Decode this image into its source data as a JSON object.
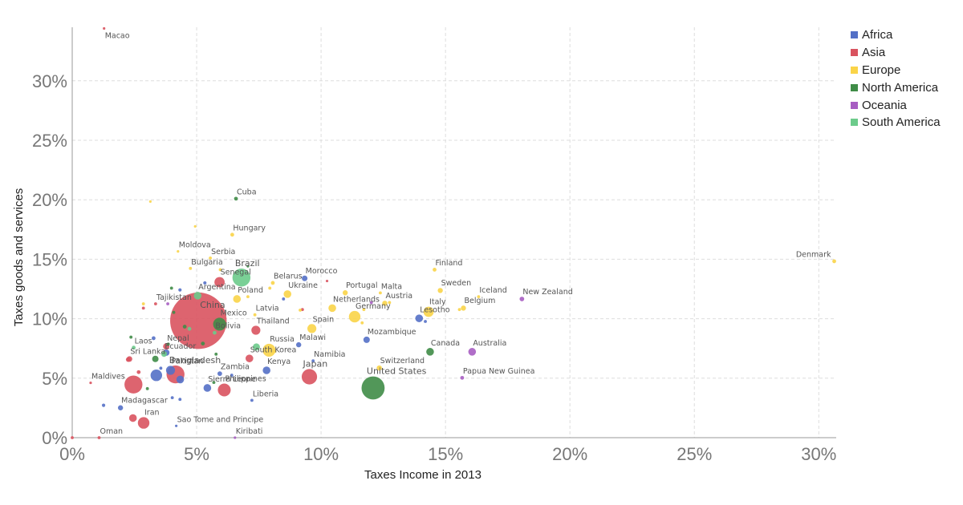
{
  "chart_data": {
    "type": "scatter",
    "title": "",
    "xlabel": "Taxes Income in 2013",
    "ylabel": "Taxes goods and services",
    "xlim": [
      0,
      0.307
    ],
    "ylim": [
      0,
      0.345
    ],
    "x_ticks": [
      {
        "value": 0,
        "label": "0%"
      },
      {
        "value": 0.05,
        "label": "5%"
      },
      {
        "value": 0.1,
        "label": "10%"
      },
      {
        "value": 0.15,
        "label": "15%"
      },
      {
        "value": 0.2,
        "label": "20%"
      },
      {
        "value": 0.25,
        "label": "25%"
      },
      {
        "value": 0.3,
        "label": "30%"
      }
    ],
    "y_ticks": [
      {
        "value": 0,
        "label": "0%"
      },
      {
        "value": 0.05,
        "label": "5%"
      },
      {
        "value": 0.1,
        "label": "10%"
      },
      {
        "value": 0.15,
        "label": "15%"
      },
      {
        "value": 0.2,
        "label": "20%"
      },
      {
        "value": 0.25,
        "label": "25%"
      },
      {
        "value": 0.3,
        "label": "30%"
      }
    ],
    "grid": true,
    "legend_position": "top-right",
    "series": [
      {
        "name": "Africa",
        "color": "#5470c6"
      },
      {
        "name": "Asia",
        "color": "#d9535f"
      },
      {
        "name": "Europe",
        "color": "#fad448"
      },
      {
        "name": "North America",
        "color": "#3f8c47"
      },
      {
        "name": "Oceania",
        "color": "#a75ec2"
      },
      {
        "name": "South America",
        "color": "#6ccb8b"
      }
    ],
    "points": [
      {
        "label": "Macao",
        "series": "Asia",
        "x": 0.0128,
        "y": 0.344,
        "size": 1
      },
      {
        "label": "Cuba",
        "series": "North America",
        "x": 0.0658,
        "y": 0.2009,
        "size": 1.5
      },
      {
        "label": "",
        "series": "Europe",
        "x": 0.0314,
        "y": 0.1985,
        "size": 1
      },
      {
        "label": "",
        "series": "Europe",
        "x": 0.0494,
        "y": 0.1776,
        "size": 1
      },
      {
        "label": "Hungary",
        "series": "Europe",
        "x": 0.0643,
        "y": 0.1706,
        "size": 1.5
      },
      {
        "label": "Moldova",
        "series": "Europe",
        "x": 0.0425,
        "y": 0.1566,
        "size": 1
      },
      {
        "label": "Serbia",
        "series": "Europe",
        "x": 0.0555,
        "y": 0.151,
        "size": 1.2
      },
      {
        "label": "Bulgaria",
        "series": "Europe",
        "x": 0.0475,
        "y": 0.1423,
        "size": 1.2
      },
      {
        "label": "Brazil",
        "series": "South America",
        "x": 0.068,
        "y": 0.1346,
        "size": 7
      },
      {
        "label": "",
        "series": "North America",
        "x": 0.0706,
        "y": 0.1441,
        "size": 1
      },
      {
        "label": "Senegal",
        "series": "Asia",
        "x": 0.0592,
        "y": 0.1307,
        "size": 4
      },
      {
        "label": "",
        "series": "Africa",
        "x": 0.0533,
        "y": 0.1301,
        "size": 1.3
      },
      {
        "label": "Belarus",
        "series": "Europe",
        "x": 0.0806,
        "y": 0.1301,
        "size": 1.5
      },
      {
        "label": "Morocco",
        "series": "Africa",
        "x": 0.0934,
        "y": 0.1339,
        "size": 2.2
      },
      {
        "label": "",
        "series": "Asia",
        "x": 0.1024,
        "y": 0.1317,
        "size": 1
      },
      {
        "label": "Ukraine",
        "series": "Europe",
        "x": 0.0865,
        "y": 0.1207,
        "size": 3
      },
      {
        "label": "",
        "series": "Africa",
        "x": 0.0849,
        "y": 0.1166,
        "size": 1.2
      },
      {
        "label": "Argentina",
        "series": "South America",
        "x": 0.0504,
        "y": 0.1194,
        "size": 3
      },
      {
        "label": "Poland",
        "series": "Europe",
        "x": 0.0662,
        "y": 0.1166,
        "size": 3
      },
      {
        "label": "Tajikistan",
        "series": "Asia",
        "x": 0.0335,
        "y": 0.1125,
        "size": 1.2
      },
      {
        "label": "China",
        "series": "Asia",
        "x": 0.0507,
        "y": 0.0983,
        "size": 22
      },
      {
        "label": "Portugal",
        "series": "Europe",
        "x": 0.1097,
        "y": 0.1218,
        "size": 2
      },
      {
        "label": "Malta",
        "series": "Europe",
        "x": 0.1238,
        "y": 0.1217,
        "size": 1.2
      },
      {
        "label": "Austria",
        "series": "Europe",
        "x": 0.1256,
        "y": 0.113,
        "size": 2
      },
      {
        "label": "Sweden",
        "series": "Europe",
        "x": 0.1479,
        "y": 0.1237,
        "size": 2
      },
      {
        "label": "Finland",
        "series": "Europe",
        "x": 0.1456,
        "y": 0.1412,
        "size": 1.5
      },
      {
        "label": "Iceland",
        "series": "Europe",
        "x": 0.1633,
        "y": 0.1185,
        "size": 1.2
      },
      {
        "label": "New Zealand",
        "series": "Oceania",
        "x": 0.1807,
        "y": 0.1166,
        "size": 1.8
      },
      {
        "label": "Belgium",
        "series": "Europe",
        "x": 0.1572,
        "y": 0.1089,
        "size": 2
      },
      {
        "label": "Italy",
        "series": "Europe",
        "x": 0.1432,
        "y": 0.1058,
        "size": 4
      },
      {
        "label": "Netherlands",
        "series": "Europe",
        "x": 0.1045,
        "y": 0.1089,
        "size": 3
      },
      {
        "label": "Germany",
        "series": "Europe",
        "x": 0.1135,
        "y": 0.1017,
        "size": 4.5
      },
      {
        "label": "Lesotho",
        "series": "Africa",
        "x": 0.1394,
        "y": 0.1003,
        "size": 3
      },
      {
        "label": "Denmark",
        "series": "Europe",
        "x": 0.3062,
        "y": 0.1483,
        "size": 1.5
      },
      {
        "label": "Latvia",
        "series": "Europe",
        "x": 0.0734,
        "y": 0.1033,
        "size": 1.2
      },
      {
        "label": "Mexico",
        "series": "North America",
        "x": 0.0592,
        "y": 0.0954,
        "size": 5
      },
      {
        "label": "Bolivia",
        "series": "South America",
        "x": 0.0572,
        "y": 0.0882,
        "size": 1.5
      },
      {
        "label": "Thailand",
        "series": "Asia",
        "x": 0.0738,
        "y": 0.0903,
        "size": 3.5
      },
      {
        "label": "Spain",
        "series": "Europe",
        "x": 0.0963,
        "y": 0.0917,
        "size": 3.5
      },
      {
        "label": "Mozambique",
        "series": "Africa",
        "x": 0.1183,
        "y": 0.0823,
        "size": 2.5
      },
      {
        "label": "Malawi",
        "series": "Africa",
        "x": 0.091,
        "y": 0.0781,
        "size": 2
      },
      {
        "label": "Russia",
        "series": "Europe",
        "x": 0.0791,
        "y": 0.0735,
        "size": 5
      },
      {
        "label": "South Korea",
        "series": "Asia",
        "x": 0.0712,
        "y": 0.0666,
        "size": 3
      },
      {
        "label": "Namibia",
        "series": "Africa",
        "x": 0.0968,
        "y": 0.0646,
        "size": 1.2
      },
      {
        "label": "Kenya",
        "series": "Africa",
        "x": 0.0781,
        "y": 0.0566,
        "size": 3
      },
      {
        "label": "Japan",
        "series": "Asia",
        "x": 0.0953,
        "y": 0.0512,
        "size": 6
      },
      {
        "label": "Switzerland",
        "series": "Europe",
        "x": 0.1234,
        "y": 0.0586,
        "size": 2
      },
      {
        "label": "United States",
        "series": "North America",
        "x": 0.1209,
        "y": 0.0418,
        "size": 9
      },
      {
        "label": "Canada",
        "series": "North America",
        "x": 0.1438,
        "y": 0.0722,
        "size": 3
      },
      {
        "label": "Australia",
        "series": "Oceania",
        "x": 0.1607,
        "y": 0.0722,
        "size": 3
      },
      {
        "label": "Papua New Guinea",
        "series": "Oceania",
        "x": 0.1567,
        "y": 0.0503,
        "size": 1.5
      },
      {
        "label": "Zambia",
        "series": "Africa",
        "x": 0.0593,
        "y": 0.0538,
        "size": 1.8
      },
      {
        "label": "Philippines",
        "series": "Asia",
        "x": 0.0611,
        "y": 0.0401,
        "size": 5
      },
      {
        "label": "Liberia",
        "series": "Africa",
        "x": 0.0722,
        "y": 0.0314,
        "size": 1.2
      },
      {
        "label": "Sierra Leone",
        "series": "Africa",
        "x": 0.0543,
        "y": 0.0418,
        "size": 3
      },
      {
        "label": "Pakistan",
        "series": "Africa",
        "x": 0.0395,
        "y": 0.0566,
        "size": 3.5
      },
      {
        "label": "Bangladesh",
        "series": "Asia",
        "x": 0.0415,
        "y": 0.0532,
        "size": 7
      },
      {
        "label": "Nepal",
        "series": "Asia",
        "x": 0.0378,
        "y": 0.0767,
        "size": 2.5
      },
      {
        "label": "Laos",
        "series": "South America",
        "x": 0.0247,
        "y": 0.0757,
        "size": 1.5
      },
      {
        "label": "Ecuador",
        "series": "South America",
        "x": 0.0369,
        "y": 0.0703,
        "size": 2.2
      },
      {
        "label": "Sri Lanka",
        "series": "Asia",
        "x": 0.023,
        "y": 0.0661,
        "size": 2.2
      },
      {
        "label": "Maldives",
        "series": "Asia",
        "x": 0.0074,
        "y": 0.0461,
        "size": 1
      },
      {
        "label": "Madagascar",
        "series": "Africa",
        "x": 0.0194,
        "y": 0.0251,
        "size": 2
      },
      {
        "label": "Iran",
        "series": "Asia",
        "x": 0.0287,
        "y": 0.0124,
        "size": 4.5
      },
      {
        "label": "Sao Tome and Principe",
        "series": "Africa",
        "x": 0.0418,
        "y": 0.0099,
        "size": 1
      },
      {
        "label": "Kiribati",
        "series": "Oceania",
        "x": 0.0654,
        "y": 0.0,
        "size": 1
      },
      {
        "label": "Oman",
        "series": "Asia",
        "x": 0.0108,
        "y": 0.0,
        "size": 1.2
      },
      {
        "label": "",
        "series": "Asia",
        "x": 0.0,
        "y": 0.0,
        "size": 1.2
      },
      {
        "label": "",
        "series": "Asia",
        "x": 0.0246,
        "y": 0.0447,
        "size": 7
      },
      {
        "label": "",
        "series": "Africa",
        "x": 0.0338,
        "y": 0.0524,
        "size": 4.5
      },
      {
        "label": "",
        "series": "Africa",
        "x": 0.0434,
        "y": 0.0489,
        "size": 3
      },
      {
        "label": "",
        "series": "Asia",
        "x": 0.0244,
        "y": 0.0165,
        "size": 3
      },
      {
        "label": "",
        "series": "Africa",
        "x": 0.0126,
        "y": 0.0272,
        "size": 1.3
      },
      {
        "label": "",
        "series": "Africa",
        "x": 0.0402,
        "y": 0.0336,
        "size": 1.2
      },
      {
        "label": "",
        "series": "Africa",
        "x": 0.0433,
        "y": 0.0322,
        "size": 1.2
      },
      {
        "label": "",
        "series": "North America",
        "x": 0.0302,
        "y": 0.0412,
        "size": 1.2
      },
      {
        "label": "",
        "series": "Asia",
        "x": 0.0225,
        "y": 0.0656,
        "size": 1.8
      },
      {
        "label": "",
        "series": "North America",
        "x": 0.0236,
        "y": 0.0845,
        "size": 1.2
      },
      {
        "label": "",
        "series": "Africa",
        "x": 0.0327,
        "y": 0.0836,
        "size": 1.5
      },
      {
        "label": "",
        "series": "North America",
        "x": 0.0334,
        "y": 0.0662,
        "size": 2.5
      },
      {
        "label": "",
        "series": "Africa",
        "x": 0.0378,
        "y": 0.0715,
        "size": 2.5
      },
      {
        "label": "",
        "series": "Asia",
        "x": 0.0267,
        "y": 0.0551,
        "size": 1.5
      },
      {
        "label": "",
        "series": "Africa",
        "x": 0.0356,
        "y": 0.0584,
        "size": 1.2
      },
      {
        "label": "",
        "series": "North America",
        "x": 0.0386,
        "y": 0.0786,
        "size": 1.2
      },
      {
        "label": "",
        "series": "North America",
        "x": 0.0399,
        "y": 0.1257,
        "size": 1.2
      },
      {
        "label": "",
        "series": "Africa",
        "x": 0.0433,
        "y": 0.1242,
        "size": 1.3
      },
      {
        "label": "",
        "series": "North America",
        "x": 0.0408,
        "y": 0.1053,
        "size": 1.2
      },
      {
        "label": "",
        "series": "Asia",
        "x": 0.0286,
        "y": 0.1089,
        "size": 1.2
      },
      {
        "label": "",
        "series": "Europe",
        "x": 0.0286,
        "y": 0.1125,
        "size": 1.2
      },
      {
        "label": "",
        "series": "Oceania",
        "x": 0.0384,
        "y": 0.1125,
        "size": 1.2
      },
      {
        "label": "",
        "series": "North America",
        "x": 0.0452,
        "y": 0.0933,
        "size": 1.5
      },
      {
        "label": "",
        "series": "South America",
        "x": 0.0471,
        "y": 0.0915,
        "size": 1.5
      },
      {
        "label": "",
        "series": "North America",
        "x": 0.0525,
        "y": 0.0791,
        "size": 1.5
      },
      {
        "label": "",
        "series": "North America",
        "x": 0.0578,
        "y": 0.0702,
        "size": 1.2
      },
      {
        "label": "",
        "series": "South America",
        "x": 0.074,
        "y": 0.0762,
        "size": 2.8
      },
      {
        "label": "",
        "series": "Europe",
        "x": 0.0794,
        "y": 0.1257,
        "size": 1.2
      },
      {
        "label": "",
        "series": "Europe",
        "x": 0.0706,
        "y": 0.1185,
        "size": 1.2
      },
      {
        "label": "",
        "series": "Europe",
        "x": 0.0595,
        "y": 0.1412,
        "size": 1.2
      },
      {
        "label": "",
        "series": "Africa",
        "x": 0.0641,
        "y": 0.0525,
        "size": 1.2
      },
      {
        "label": "",
        "series": "North America",
        "x": 0.0569,
        "y": 0.0464,
        "size": 1.2
      },
      {
        "label": "",
        "series": "Asia",
        "x": 0.0925,
        "y": 0.1077,
        "size": 1.2
      },
      {
        "label": "",
        "series": "Europe",
        "x": 0.0916,
        "y": 0.1072,
        "size": 1.2
      },
      {
        "label": "",
        "series": "Europe",
        "x": 0.1165,
        "y": 0.0965,
        "size": 1.2
      },
      {
        "label": "",
        "series": "Oceania",
        "x": 0.1202,
        "y": 0.1136,
        "size": 1.2
      },
      {
        "label": "",
        "series": "Europe",
        "x": 0.1275,
        "y": 0.1136,
        "size": 1.2
      },
      {
        "label": "",
        "series": "Europe",
        "x": 0.1172,
        "y": 0.1077,
        "size": 1.2
      },
      {
        "label": "",
        "series": "Africa",
        "x": 0.1419,
        "y": 0.0977,
        "size": 1.2
      },
      {
        "label": "",
        "series": "Europe",
        "x": 0.1556,
        "y": 0.1077,
        "size": 1.2
      },
      {
        "label": "",
        "series": "Europe",
        "x": 0.0814,
        "y": 0.0725,
        "size": 1.2
      }
    ]
  }
}
